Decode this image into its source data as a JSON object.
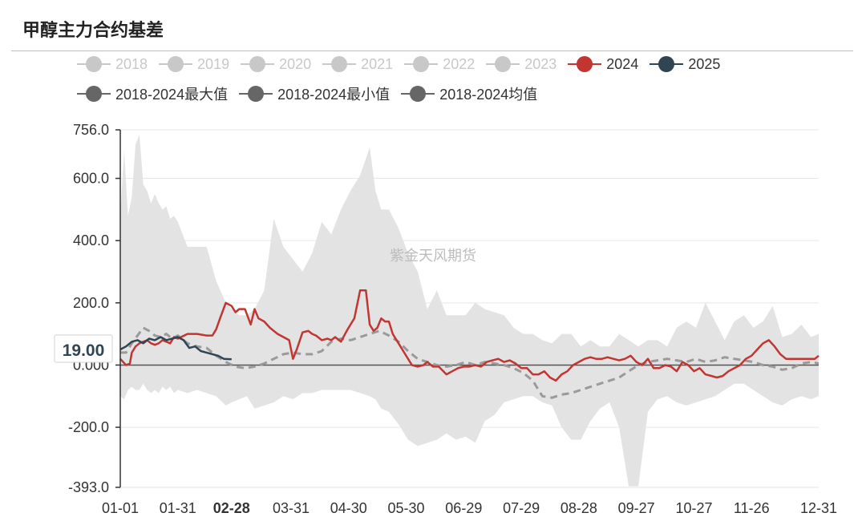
{
  "title": "甲醇主力合约基差",
  "watermark": "紫金天风期货",
  "legend": [
    {
      "label": "2018",
      "color": "#c8c8c8",
      "active": false,
      "row": 1
    },
    {
      "label": "2019",
      "color": "#c8c8c8",
      "active": false,
      "row": 1
    },
    {
      "label": "2020",
      "color": "#c8c8c8",
      "active": false,
      "row": 1
    },
    {
      "label": "2021",
      "color": "#c8c8c8",
      "active": false,
      "row": 1
    },
    {
      "label": "2022",
      "color": "#c8c8c8",
      "active": false,
      "row": 1
    },
    {
      "label": "2023",
      "color": "#c8c8c8",
      "active": false,
      "row": 1
    },
    {
      "label": "2024",
      "color": "#c23531",
      "active": true,
      "row": 1
    },
    {
      "label": "2025",
      "color": "#2f4554",
      "active": true,
      "row": 1
    },
    {
      "label": "2018-2024最大值",
      "color": "#666666",
      "active": true,
      "row": 2
    },
    {
      "label": "2018-2024最小值",
      "color": "#666666",
      "active": true,
      "row": 2
    },
    {
      "label": "2018-2024均值",
      "color": "#666666",
      "active": true,
      "row": 2
    }
  ],
  "chart_data": {
    "type": "area",
    "ylim": [
      -393,
      756
    ],
    "y_ticks": [
      "756.0",
      "600.0",
      "400.0",
      "200.0",
      "0.000",
      "-200.0",
      "-393.0"
    ],
    "x_ticks": [
      "01-01",
      "01-31",
      "02-28",
      "03-31",
      "04-30",
      "05-30",
      "06-29",
      "07-29",
      "08-28",
      "09-27",
      "10-27",
      "11-26",
      "12-31"
    ],
    "x_tick_days": [
      0,
      30,
      58,
      89,
      119,
      149,
      179,
      209,
      239,
      269,
      299,
      329,
      364
    ],
    "highlight_tick": "02-28",
    "tooltip_value": "19.00",
    "grid": "horizontal",
    "range_band": {
      "name": "2018-2024最大值/最小值",
      "color": "#e3e3e3",
      "days": [
        0,
        2,
        4,
        6,
        8,
        10,
        12,
        14,
        16,
        18,
        20,
        22,
        24,
        26,
        28,
        30,
        35,
        40,
        45,
        50,
        55,
        58,
        62,
        66,
        70,
        75,
        80,
        85,
        90,
        95,
        100,
        105,
        110,
        115,
        120,
        125,
        130,
        133,
        136,
        140,
        145,
        150,
        155,
        160,
        165,
        170,
        175,
        180,
        185,
        190,
        195,
        200,
        205,
        210,
        215,
        220,
        225,
        230,
        235,
        240,
        245,
        250,
        255,
        260,
        265,
        270,
        275,
        280,
        285,
        290,
        295,
        300,
        305,
        310,
        315,
        320,
        325,
        330,
        335,
        340,
        345,
        350,
        355,
        360,
        364
      ],
      "max": [
        480,
        690,
        480,
        540,
        710,
        740,
        580,
        560,
        520,
        550,
        520,
        500,
        510,
        470,
        480,
        460,
        380,
        380,
        380,
        270,
        200,
        180,
        160,
        160,
        180,
        240,
        470,
        380,
        340,
        300,
        360,
        460,
        420,
        500,
        560,
        610,
        700,
        560,
        500,
        500,
        440,
        360,
        300,
        180,
        240,
        160,
        160,
        160,
        200,
        180,
        170,
        160,
        120,
        100,
        100,
        80,
        70,
        100,
        100,
        60,
        80,
        60,
        60,
        100,
        80,
        60,
        80,
        80,
        60,
        120,
        140,
        120,
        200,
        140,
        80,
        140,
        160,
        120,
        140,
        190,
        90,
        100,
        130,
        90,
        100
      ],
      "min": [
        -100,
        -110,
        -80,
        -70,
        -80,
        -80,
        -60,
        -80,
        -90,
        -80,
        -90,
        -70,
        -80,
        -70,
        -90,
        -80,
        -90,
        -80,
        -90,
        -100,
        -130,
        -120,
        -110,
        -100,
        -140,
        -130,
        -120,
        -100,
        -110,
        -90,
        -90,
        -80,
        -80,
        -80,
        -80,
        -90,
        -100,
        -110,
        -140,
        -150,
        -190,
        -240,
        -260,
        -250,
        -240,
        -220,
        -240,
        -230,
        -250,
        -180,
        -160,
        -120,
        -110,
        -100,
        -100,
        -120,
        -130,
        -200,
        -240,
        -240,
        -180,
        -140,
        -120,
        -200,
        -390,
        -390,
        -150,
        -110,
        -100,
        -120,
        -130,
        -120,
        -110,
        -100,
        -80,
        -60,
        -60,
        -80,
        -100,
        -120,
        -130,
        -110,
        -100,
        -110,
        -100
      ]
    },
    "series": [
      {
        "name": "2018-2024均值",
        "color": "#9a9a9a",
        "style": "dashed",
        "days": [
          0,
          3,
          6,
          9,
          12,
          15,
          18,
          21,
          24,
          27,
          30,
          35,
          40,
          45,
          50,
          55,
          60,
          65,
          70,
          75,
          80,
          85,
          90,
          95,
          100,
          105,
          110,
          115,
          120,
          125,
          130,
          135,
          140,
          145,
          150,
          155,
          160,
          165,
          170,
          175,
          180,
          185,
          190,
          195,
          200,
          205,
          210,
          215,
          220,
          225,
          230,
          235,
          240,
          245,
          250,
          255,
          260,
          265,
          270,
          275,
          280,
          285,
          290,
          295,
          300,
          305,
          310,
          315,
          320,
          325,
          330,
          335,
          340,
          345,
          350,
          355,
          360,
          364
        ],
        "values": [
          40,
          40,
          70,
          95,
          120,
          110,
          95,
          90,
          100,
          85,
          95,
          70,
          60,
          55,
          30,
          10,
          -5,
          -10,
          -5,
          5,
          20,
          35,
          40,
          35,
          35,
          45,
          75,
          85,
          80,
          90,
          100,
          110,
          95,
          75,
          45,
          20,
          10,
          0,
          -5,
          0,
          10,
          0,
          10,
          5,
          0,
          -10,
          -25,
          -50,
          -100,
          -105,
          -95,
          -90,
          -80,
          -70,
          -60,
          -50,
          -40,
          -20,
          0,
          10,
          15,
          20,
          15,
          10,
          20,
          10,
          15,
          25,
          20,
          15,
          10,
          0,
          -5,
          -15,
          -10,
          5,
          10,
          5
        ]
      },
      {
        "name": "2024",
        "color": "#c23531",
        "style": "solid",
        "days": [
          0,
          3,
          5,
          6,
          8,
          10,
          12,
          14,
          16,
          18,
          20,
          22,
          24,
          26,
          28,
          30,
          35,
          40,
          45,
          48,
          50,
          52,
          55,
          58,
          60,
          62,
          65,
          68,
          70,
          72,
          75,
          78,
          80,
          82,
          85,
          88,
          90,
          92,
          95,
          98,
          100,
          102,
          105,
          108,
          110,
          112,
          115,
          118,
          120,
          122,
          125,
          128,
          130,
          132,
          134,
          136,
          138,
          140,
          142,
          145,
          148,
          150,
          152,
          155,
          158,
          160,
          163,
          166,
          170,
          173,
          176,
          179,
          182,
          185,
          188,
          191,
          194,
          197,
          200,
          203,
          206,
          209,
          212,
          215,
          218,
          221,
          224,
          227,
          230,
          233,
          236,
          239,
          242,
          245,
          248,
          251,
          254,
          257,
          260,
          263,
          266,
          269,
          272,
          275,
          278,
          281,
          284,
          287,
          290,
          293,
          296,
          299,
          302,
          305,
          308,
          311,
          314,
          317,
          320,
          323,
          326,
          329,
          332,
          335,
          338,
          341,
          344,
          347,
          350,
          353,
          356,
          359,
          362,
          364
        ],
        "values": [
          20,
          0,
          5,
          40,
          60,
          70,
          75,
          80,
          70,
          65,
          70,
          80,
          75,
          70,
          90,
          85,
          100,
          100,
          95,
          95,
          115,
          150,
          200,
          190,
          170,
          180,
          180,
          130,
          180,
          150,
          140,
          120,
          110,
          100,
          90,
          80,
          20,
          50,
          105,
          110,
          100,
          95,
          80,
          85,
          80,
          90,
          75,
          110,
          130,
          150,
          240,
          240,
          130,
          110,
          120,
          150,
          140,
          140,
          100,
          70,
          40,
          20,
          0,
          -5,
          0,
          10,
          -5,
          -5,
          -30,
          -20,
          -10,
          -5,
          -5,
          0,
          -5,
          10,
          15,
          20,
          10,
          15,
          5,
          -10,
          -10,
          -30,
          -30,
          -20,
          -40,
          -50,
          -30,
          -20,
          0,
          10,
          20,
          25,
          20,
          20,
          25,
          20,
          15,
          20,
          30,
          10,
          0,
          20,
          -10,
          -10,
          0,
          -5,
          -20,
          10,
          0,
          -20,
          -10,
          -30,
          -35,
          -40,
          -35,
          -20,
          -10,
          0,
          20,
          30,
          50,
          70,
          80,
          60,
          35,
          20,
          20,
          20,
          20,
          20,
          20,
          30
        ]
      },
      {
        "name": "2025",
        "color": "#2f4554",
        "style": "solid",
        "days": [
          0,
          3,
          6,
          9,
          12,
          15,
          18,
          21,
          24,
          27,
          30,
          33,
          36,
          39,
          42,
          45,
          48,
          51,
          54,
          57,
          58
        ],
        "values": [
          50,
          60,
          75,
          80,
          70,
          85,
          80,
          90,
          80,
          85,
          90,
          80,
          55,
          60,
          45,
          40,
          35,
          30,
          20,
          19,
          19
        ]
      }
    ]
  }
}
